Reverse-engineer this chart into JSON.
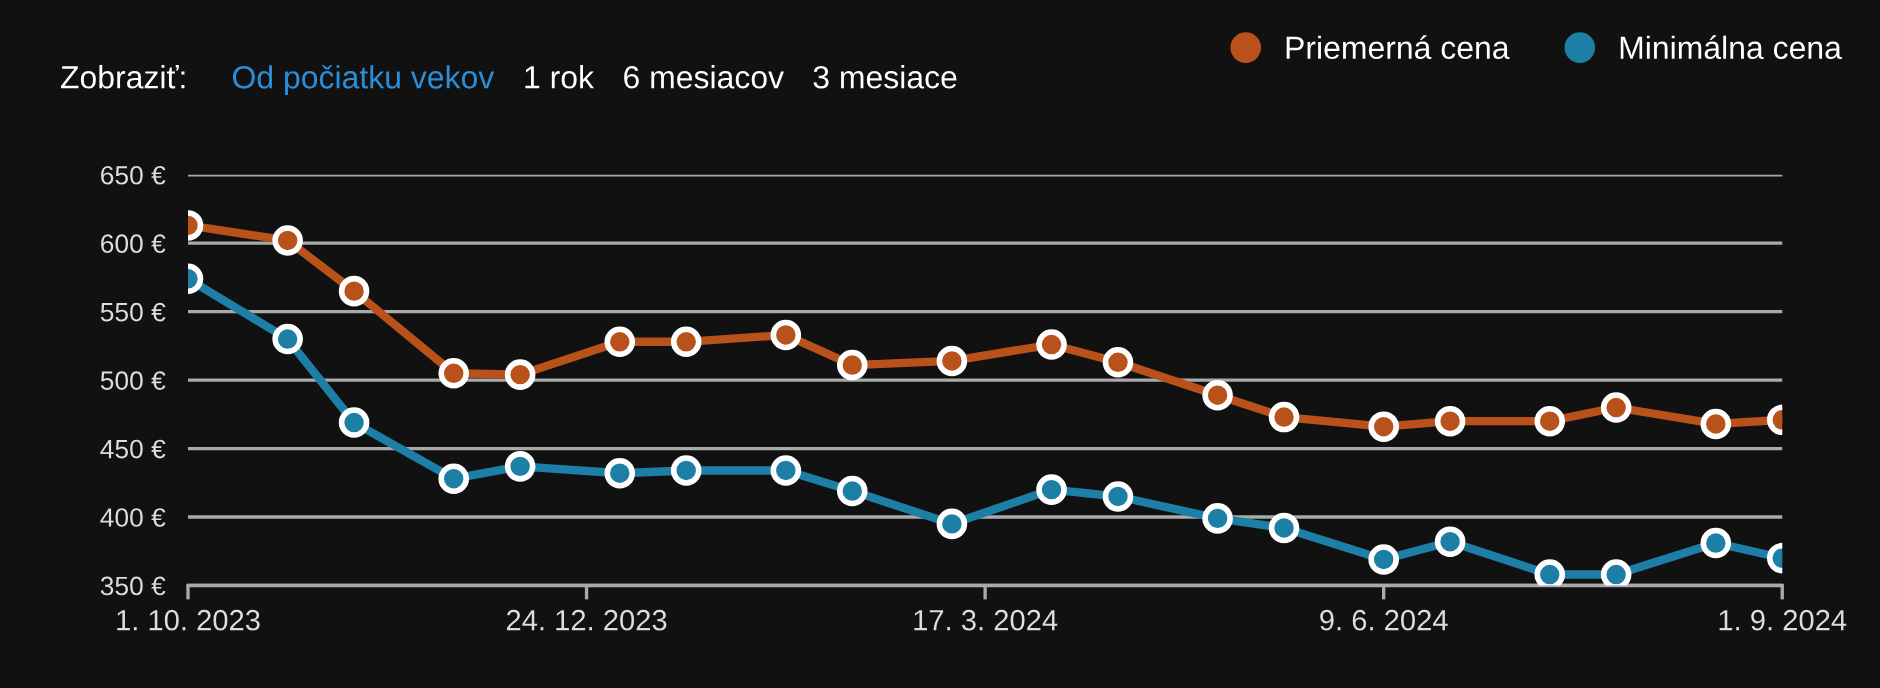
{
  "chart_data": {
    "type": "line",
    "annotations": [
      "Zobraziť:",
      "Od počiatku vekov",
      "1 rok",
      "6 mesiacov",
      "3 mesiace"
    ],
    "x": [
      "2023-10-01",
      "2023-10-22",
      "2023-11-05",
      "2023-11-26",
      "2023-12-10",
      "2023-12-31",
      "2024-01-14",
      "2024-02-04",
      "2024-02-18",
      "2024-03-10",
      "2024-03-31",
      "2024-04-14",
      "2024-05-05",
      "2024-05-19",
      "2024-06-09",
      "2024-06-23",
      "2024-07-14",
      "2024-07-28",
      "2024-08-18",
      "2024-09-01"
    ],
    "series": [
      {
        "name": "Priemerná cena",
        "color": "#b9521a",
        "values": [
          613,
          602,
          565,
          505,
          504,
          528,
          528,
          533,
          511,
          514,
          526,
          513,
          489,
          473,
          466,
          470,
          470,
          480,
          468,
          471
        ]
      },
      {
        "name": "Minimálna cena",
        "color": "#1d7fa6",
        "values": [
          574,
          530,
          469,
          428,
          437,
          432,
          434,
          434,
          419,
          395,
          420,
          415,
          399,
          392,
          369,
          382,
          358,
          358,
          381,
          370
        ]
      }
    ],
    "xlim": [
      "2023-10-01",
      "2024-09-01"
    ],
    "xticks": [
      {
        "value": "2023-10-01",
        "label": "1. 10. 2023"
      },
      {
        "value": "2023-12-24",
        "label": "24. 12. 2023"
      },
      {
        "value": "2024-03-17",
        "label": "17. 3. 2024"
      },
      {
        "value": "2024-06-09",
        "label": "9. 6. 2024"
      },
      {
        "value": "2024-09-01",
        "label": "1. 9. 2024"
      }
    ],
    "ylim": [
      350,
      650
    ],
    "yticks": [
      {
        "value": 350,
        "label": "350 €"
      },
      {
        "value": 400,
        "label": "400 €"
      },
      {
        "value": 450,
        "label": "450 €"
      },
      {
        "value": 500,
        "label": "500 €"
      },
      {
        "value": 550,
        "label": "550 €"
      },
      {
        "value": 600,
        "label": "600 €"
      },
      {
        "value": 650,
        "label": "650 €"
      }
    ],
    "grid": "y",
    "legend": "top right",
    "marker": "circle",
    "line_style": "solid"
  }
}
